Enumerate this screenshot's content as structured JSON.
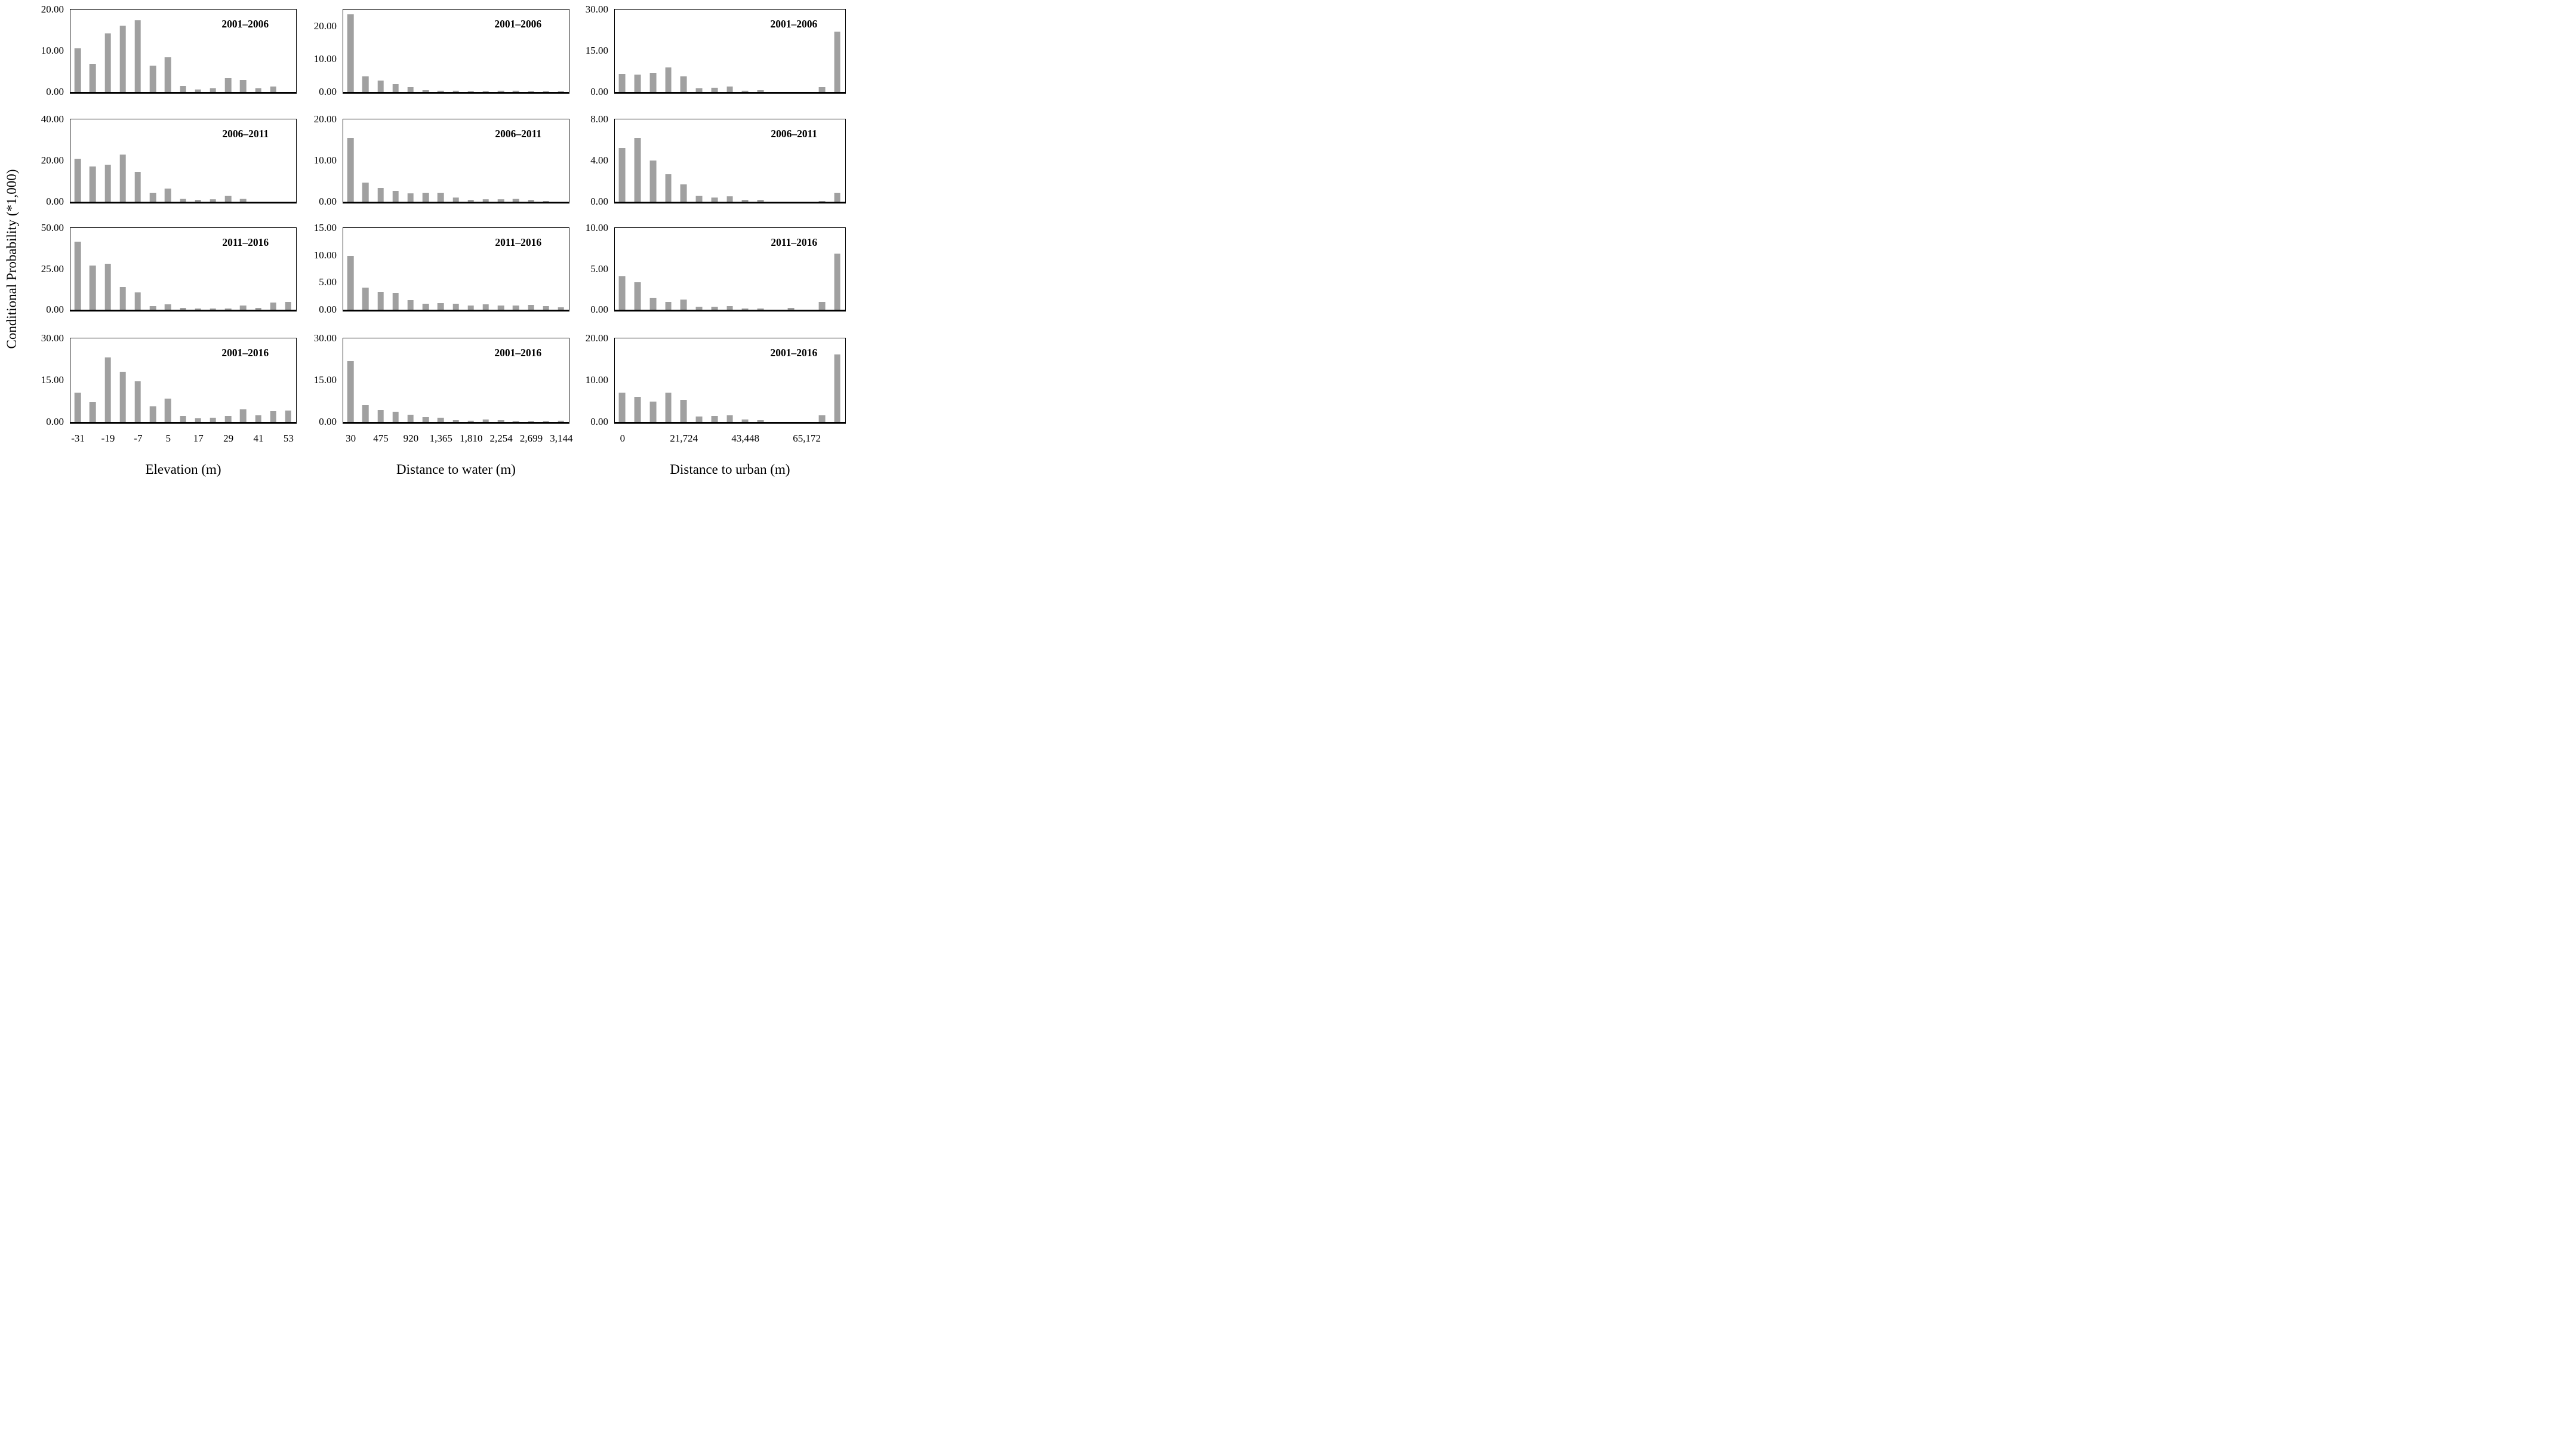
{
  "figure": {
    "ylabel": "Conditional Probability (*1,000)",
    "bar_color": "#a0a0a0",
    "axis_color": "#000000",
    "background": "#ffffff",
    "grid": "off",
    "legend": "none",
    "periods": [
      "2001–2006",
      "2006–2011",
      "2011–2016",
      "2001–2016"
    ]
  },
  "columns": [
    {
      "xlabel": "Elevation (m)",
      "bins": 15,
      "xticks": [
        {
          "bin": 0,
          "label": "-31"
        },
        {
          "bin": 2,
          "label": "-19"
        },
        {
          "bin": 4,
          "label": "-7"
        },
        {
          "bin": 6,
          "label": "5"
        },
        {
          "bin": 8,
          "label": "17"
        },
        {
          "bin": 10,
          "label": "29"
        },
        {
          "bin": 12,
          "label": "41"
        },
        {
          "bin": 14,
          "label": "53"
        }
      ]
    },
    {
      "xlabel": "Distance to water (m)",
      "bins": 15,
      "xticks": [
        {
          "bin": 0,
          "label": "30"
        },
        {
          "bin": 2,
          "label": "475"
        },
        {
          "bin": 4,
          "label": "920"
        },
        {
          "bin": 6,
          "label": "1,365"
        },
        {
          "bin": 8,
          "label": "1,810"
        },
        {
          "bin": 10,
          "label": "2,254"
        },
        {
          "bin": 12,
          "label": "2,699"
        },
        {
          "bin": 14,
          "label": "3,144"
        }
      ]
    },
    {
      "xlabel": "Distance to urban (m)",
      "bins": 15,
      "xticks": [
        {
          "bin": 0,
          "label": "0"
        },
        {
          "bin": 4,
          "label": "21,724"
        },
        {
          "bin": 8,
          "label": "43,448"
        },
        {
          "bin": 12,
          "label": "65,172"
        }
      ]
    }
  ],
  "chart_data": [
    {
      "type": "bar",
      "column": 0,
      "row": 0,
      "period": "2001–2006",
      "ylim": [
        0,
        20
      ],
      "yticks": [
        "0.00",
        "10.00",
        "20.00"
      ],
      "values": [
        10.5,
        6.8,
        14.1,
        16.0,
        17.3,
        6.3,
        8.3,
        1.4,
        0.5,
        0.8,
        3.2,
        2.9,
        0.8,
        1.3,
        0
      ]
    },
    {
      "type": "bar",
      "column": 0,
      "row": 1,
      "period": "2006–2011",
      "ylim": [
        0,
        40
      ],
      "yticks": [
        "0.00",
        "20.00",
        "40.00"
      ],
      "values": [
        20.8,
        17.0,
        17.9,
        22.8,
        14.4,
        4.2,
        6.3,
        1.2,
        0.7,
        1.0,
        2.8,
        1.4,
        0,
        0,
        0
      ]
    },
    {
      "type": "bar",
      "column": 0,
      "row": 2,
      "period": "2011–2016",
      "ylim": [
        0,
        50
      ],
      "yticks": [
        "0.00",
        "25.00",
        "50.00"
      ],
      "values": [
        41.5,
        27.0,
        27.9,
        13.6,
        10.5,
        1.9,
        3.2,
        1.1,
        0.5,
        0.5,
        0.7,
        2.3,
        1.0,
        4.3,
        4.7
      ]
    },
    {
      "type": "bar",
      "column": 0,
      "row": 3,
      "period": "2001–2016",
      "ylim": [
        0,
        30
      ],
      "yticks": [
        "0.00",
        "15.00",
        "30.00"
      ],
      "values": [
        10.5,
        6.9,
        23.0,
        18.0,
        14.4,
        5.5,
        8.2,
        2.1,
        1.2,
        1.4,
        2.1,
        4.3,
        2.3,
        3.8,
        4.0
      ]
    },
    {
      "type": "bar",
      "column": 1,
      "row": 0,
      "period": "2001–2006",
      "ylim": [
        0,
        25
      ],
      "yticks": [
        "0.00",
        "10.00",
        "20.00"
      ],
      "values": [
        23.5,
        4.6,
        3.3,
        2.2,
        1.3,
        0.5,
        0.3,
        0.2,
        0.15,
        0.15,
        0.25,
        0.2,
        0.15,
        0.1,
        0.1
      ]
    },
    {
      "type": "bar",
      "column": 1,
      "row": 1,
      "period": "2006–2011",
      "ylim": [
        0,
        20
      ],
      "yticks": [
        "0.00",
        "10.00",
        "20.00"
      ],
      "values": [
        15.5,
        4.5,
        3.3,
        2.6,
        2.0,
        2.1,
        2.1,
        0.95,
        0.35,
        0.45,
        0.55,
        0.7,
        0.3,
        0.05,
        0
      ]
    },
    {
      "type": "bar",
      "column": 1,
      "row": 2,
      "period": "2011–2016",
      "ylim": [
        0,
        15
      ],
      "yticks": [
        "0.00",
        "5.00",
        "10.00",
        "15.00"
      ],
      "values": [
        9.75,
        4.0,
        3.2,
        3.05,
        1.7,
        1.0,
        1.2,
        1.05,
        0.75,
        0.95,
        0.75,
        0.7,
        0.8,
        0.65,
        0.4
      ]
    },
    {
      "type": "bar",
      "column": 1,
      "row": 3,
      "period": "2001–2016",
      "ylim": [
        0,
        30
      ],
      "yticks": [
        "0.00",
        "15.00",
        "30.00"
      ],
      "values": [
        21.8,
        5.8,
        4.2,
        3.45,
        2.5,
        1.6,
        1.45,
        0.55,
        0.3,
        0.7,
        0.55,
        0.2,
        0.1,
        0.1,
        0.35
      ]
    },
    {
      "type": "bar",
      "column": 2,
      "row": 0,
      "period": "2001–2006",
      "ylim": [
        0,
        30
      ],
      "yticks": [
        "0.00",
        "15.00",
        "30.00"
      ],
      "values": [
        6.4,
        6.1,
        6.9,
        8.9,
        5.5,
        1.1,
        1.4,
        1.8,
        0.4,
        0.5,
        0,
        0,
        0,
        1.6,
        21.8
      ]
    },
    {
      "type": "bar",
      "column": 2,
      "row": 1,
      "period": "2006–2011",
      "ylim": [
        0,
        8
      ],
      "yticks": [
        "0.00",
        "4.00",
        "8.00"
      ],
      "values": [
        5.2,
        6.2,
        4.0,
        2.65,
        1.65,
        0.55,
        0.4,
        0.5,
        0.17,
        0.12,
        0,
        0,
        0,
        0.05,
        0.85
      ]
    },
    {
      "type": "bar",
      "column": 2,
      "row": 2,
      "period": "2011–2016",
      "ylim": [
        0,
        10
      ],
      "yticks": [
        "0.00",
        "5.00",
        "10.00"
      ],
      "values": [
        4.05,
        3.3,
        1.4,
        0.9,
        1.2,
        0.3,
        0.35,
        0.4,
        0.1,
        0.1,
        0,
        0.15,
        0,
        0.95,
        6.85
      ]
    },
    {
      "type": "bar",
      "column": 2,
      "row": 3,
      "period": "2001–2016",
      "ylim": [
        0,
        20
      ],
      "yticks": [
        "0.00",
        "10.00",
        "20.00"
      ],
      "values": [
        6.9,
        6.0,
        4.8,
        6.9,
        5.2,
        1.2,
        1.3,
        1.45,
        0.45,
        0.4,
        0,
        0,
        0,
        1.5,
        16.1
      ]
    }
  ]
}
